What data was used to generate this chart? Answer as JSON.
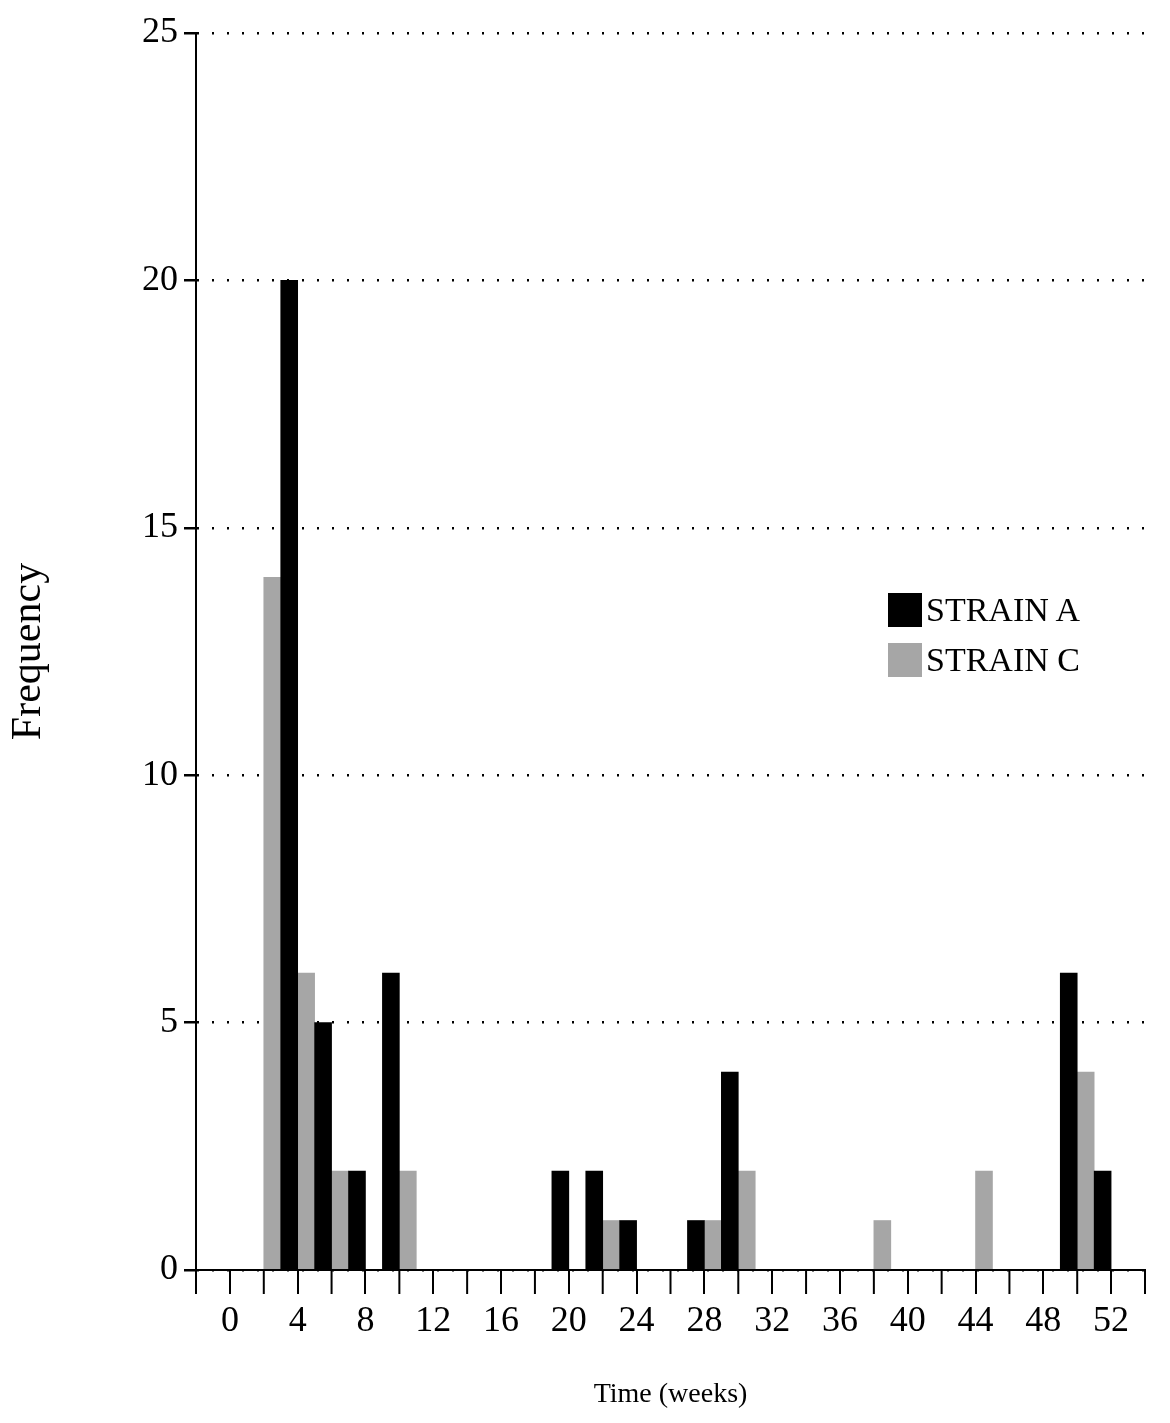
{
  "chart_data": {
    "type": "bar",
    "xlabel": "Time (weeks)",
    "ylabel": "Frequency",
    "series": [
      {
        "name": "STRAIN A",
        "color": "#000000",
        "x": [
          3.5,
          5.5,
          7.5,
          9.5,
          19.5,
          21.5,
          23.5,
          27.5,
          29.5,
          49.5,
          51.5
        ],
        "values": [
          20,
          5,
          2,
          6,
          2,
          2,
          1,
          1,
          4,
          6,
          2
        ]
      },
      {
        "name": "STRAIN C",
        "color": "#a6a6a6",
        "x": [
          2.5,
          4.5,
          6.5,
          10.5,
          22.5,
          28.5,
          30.5,
          38.5,
          44.5,
          50.5
        ],
        "values": [
          14,
          6,
          2,
          2,
          1,
          1,
          2,
          1,
          2,
          4
        ]
      }
    ],
    "xlim": [
      -2,
      54
    ],
    "xticks": [
      0,
      4,
      8,
      12,
      16,
      20,
      24,
      28,
      32,
      36,
      40,
      44,
      48,
      52
    ],
    "ylim": [
      0,
      25
    ],
    "yticks": [
      0,
      5,
      10,
      15,
      20,
      25
    ],
    "grid": "y",
    "legend": "right"
  }
}
